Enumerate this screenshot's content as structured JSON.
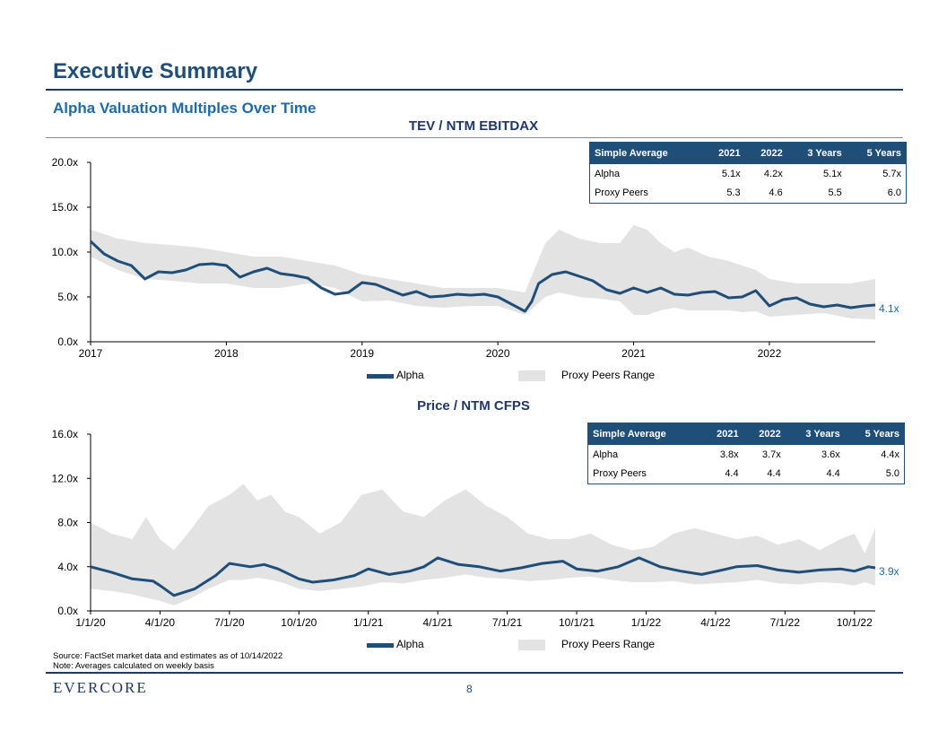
{
  "header": {
    "title": "Executive Summary",
    "subtitle": "Alpha Valuation Multiples Over Time"
  },
  "colors": {
    "navy": "#1f4e79",
    "range_fill": "#e3e3e3",
    "accent_blue": "#1f6ba5"
  },
  "chart_data": [
    {
      "type": "line",
      "title": "TEV / NTM EBITDAX",
      "x_ticks": [
        "2017",
        "2018",
        "2019",
        "2020",
        "2021",
        "2022"
      ],
      "x_range": [
        2017.0,
        2022.78
      ],
      "y_ticks": [
        "0.0x",
        "5.0x",
        "10.0x",
        "15.0x",
        "20.0x"
      ],
      "ylim": [
        0,
        20
      ],
      "end_label": "4.1x",
      "series": [
        {
          "name": "Alpha",
          "x": [
            2017.0,
            2017.1,
            2017.2,
            2017.3,
            2017.4,
            2017.5,
            2017.6,
            2017.7,
            2017.8,
            2017.9,
            2018.0,
            2018.1,
            2018.2,
            2018.3,
            2018.4,
            2018.5,
            2018.6,
            2018.7,
            2018.8,
            2018.9,
            2019.0,
            2019.1,
            2019.2,
            2019.3,
            2019.4,
            2019.5,
            2019.6,
            2019.7,
            2019.8,
            2019.9,
            2020.0,
            2020.1,
            2020.2,
            2020.25,
            2020.3,
            2020.4,
            2020.5,
            2020.6,
            2020.7,
            2020.8,
            2020.9,
            2021.0,
            2021.1,
            2021.2,
            2021.3,
            2021.4,
            2021.5,
            2021.6,
            2021.7,
            2021.8,
            2021.9,
            2022.0,
            2022.1,
            2022.2,
            2022.3,
            2022.4,
            2022.5,
            2022.6,
            2022.7,
            2022.78
          ],
          "values": [
            11.2,
            9.8,
            9.0,
            8.5,
            7.0,
            7.8,
            7.7,
            8.0,
            8.6,
            8.7,
            8.5,
            7.2,
            7.8,
            8.2,
            7.6,
            7.4,
            7.1,
            6.0,
            5.3,
            5.5,
            6.6,
            6.4,
            5.8,
            5.2,
            5.6,
            5.0,
            5.1,
            5.3,
            5.2,
            5.3,
            5.0,
            4.2,
            3.4,
            4.5,
            6.5,
            7.5,
            7.8,
            7.3,
            6.8,
            5.8,
            5.4,
            6.0,
            5.5,
            6.0,
            5.3,
            5.2,
            5.5,
            5.6,
            4.9,
            5.0,
            5.7,
            4.0,
            4.7,
            4.9,
            4.2,
            3.9,
            4.1,
            3.8,
            4.0,
            4.1
          ]
        },
        {
          "name": "Proxy Peers Range",
          "x": [
            2017.0,
            2017.2,
            2017.4,
            2017.6,
            2017.8,
            2018.0,
            2018.2,
            2018.4,
            2018.6,
            2018.8,
            2019.0,
            2019.2,
            2019.4,
            2019.6,
            2019.8,
            2020.0,
            2020.2,
            2020.35,
            2020.45,
            2020.6,
            2020.75,
            2020.9,
            2021.0,
            2021.1,
            2021.2,
            2021.3,
            2021.4,
            2021.55,
            2021.7,
            2021.8,
            2021.9,
            2022.0,
            2022.2,
            2022.4,
            2022.6,
            2022.78
          ],
          "low": [
            9.5,
            8.0,
            7.0,
            6.8,
            6.5,
            6.5,
            6.0,
            6.0,
            6.5,
            6.0,
            4.5,
            4.6,
            4.0,
            3.8,
            4.0,
            4.0,
            3.0,
            5.0,
            5.5,
            5.0,
            4.8,
            4.5,
            3.0,
            3.0,
            3.5,
            3.8,
            3.5,
            3.5,
            3.5,
            3.3,
            3.4,
            2.8,
            3.0,
            3.2,
            2.6,
            2.5
          ],
          "high": [
            12.5,
            11.5,
            11.0,
            10.8,
            10.5,
            10.0,
            9.5,
            9.5,
            9.0,
            8.5,
            7.5,
            7.0,
            6.5,
            6.0,
            6.0,
            6.0,
            5.5,
            11.0,
            12.5,
            11.5,
            11.0,
            11.0,
            13.0,
            12.5,
            11.0,
            10.0,
            10.5,
            9.5,
            9.0,
            8.5,
            8.0,
            7.0,
            6.5,
            6.5,
            6.5,
            7.0
          ]
        }
      ],
      "table": {
        "headers": [
          "Simple Average",
          "2021",
          "2022",
          "3 Years",
          "5 Years"
        ],
        "rows": [
          [
            "Alpha",
            "5.1x",
            "4.2x",
            "5.1x",
            "5.7x"
          ],
          [
            "Proxy Peers",
            "5.3",
            "4.6",
            "5.5",
            "6.0"
          ]
        ]
      },
      "legend": [
        "Alpha",
        "Proxy Peers Range"
      ]
    },
    {
      "type": "line",
      "title": "Price / NTM CFPS",
      "x_ticks": [
        "1/1/20",
        "4/1/20",
        "7/1/20",
        "10/1/20",
        "1/1/21",
        "4/1/21",
        "7/1/21",
        "10/1/21",
        "1/1/22",
        "4/1/22",
        "7/1/22",
        "10/1/22"
      ],
      "x_range": [
        0,
        11.3
      ],
      "y_ticks": [
        "0.0x",
        "4.0x",
        "8.0x",
        "12.0x",
        "16.0x"
      ],
      "ylim": [
        0,
        16
      ],
      "end_label": "3.9x",
      "series": [
        {
          "name": "Alpha",
          "x": [
            0,
            0.3,
            0.6,
            0.9,
            1.0,
            1.2,
            1.5,
            1.8,
            2.0,
            2.1,
            2.3,
            2.5,
            2.7,
            3.0,
            3.2,
            3.5,
            3.8,
            4.0,
            4.3,
            4.6,
            4.8,
            5.0,
            5.3,
            5.6,
            5.9,
            6.2,
            6.5,
            6.8,
            7.0,
            7.3,
            7.6,
            7.9,
            8.2,
            8.5,
            8.8,
            9.1,
            9.3,
            9.6,
            9.9,
            10.2,
            10.5,
            10.8,
            11.0,
            11.2,
            11.3
          ],
          "values": [
            4.0,
            3.5,
            2.9,
            2.7,
            2.3,
            1.4,
            2.0,
            3.2,
            4.3,
            4.2,
            4.0,
            4.2,
            3.8,
            2.9,
            2.6,
            2.8,
            3.2,
            3.8,
            3.3,
            3.6,
            4.0,
            4.8,
            4.2,
            4.0,
            3.6,
            3.9,
            4.3,
            4.5,
            3.8,
            3.6,
            4.0,
            4.8,
            4.0,
            3.6,
            3.3,
            3.7,
            4.0,
            4.1,
            3.7,
            3.5,
            3.7,
            3.8,
            3.6,
            4.0,
            3.9
          ]
        },
        {
          "name": "Proxy Peers Range",
          "x": [
            0,
            0.3,
            0.6,
            0.8,
            1.0,
            1.2,
            1.4,
            1.7,
            2.0,
            2.2,
            2.4,
            2.6,
            2.8,
            3.0,
            3.3,
            3.6,
            3.9,
            4.2,
            4.5,
            4.8,
            5.1,
            5.4,
            5.7,
            6.0,
            6.3,
            6.6,
            6.9,
            7.2,
            7.5,
            7.8,
            8.1,
            8.4,
            8.7,
            9.0,
            9.3,
            9.6,
            9.9,
            10.2,
            10.5,
            10.8,
            11.0,
            11.15,
            11.3
          ],
          "low": [
            2.0,
            1.8,
            1.5,
            1.2,
            0.9,
            0.5,
            1.0,
            2.0,
            2.8,
            2.8,
            3.0,
            2.8,
            2.5,
            2.0,
            1.8,
            2.0,
            2.2,
            2.6,
            2.5,
            2.8,
            3.0,
            3.3,
            3.0,
            2.9,
            2.7,
            2.8,
            3.0,
            3.1,
            2.8,
            2.6,
            2.6,
            2.7,
            2.4,
            2.5,
            2.6,
            2.8,
            2.5,
            2.4,
            2.6,
            2.5,
            2.3,
            2.6,
            2.3
          ],
          "high": [
            8.0,
            7.0,
            6.5,
            8.5,
            6.5,
            5.5,
            7.0,
            9.5,
            10.5,
            11.5,
            10.0,
            10.5,
            9.0,
            8.5,
            7.0,
            8.0,
            10.5,
            11.0,
            9.0,
            8.5,
            10.0,
            11.0,
            9.5,
            8.5,
            7.0,
            6.5,
            6.5,
            7.0,
            6.0,
            5.5,
            5.8,
            7.0,
            7.5,
            7.0,
            6.5,
            6.8,
            6.0,
            6.5,
            5.5,
            6.5,
            7.0,
            5.2,
            7.5
          ]
        }
      ],
      "table": {
        "headers": [
          "Simple Average",
          "2021",
          "2022",
          "3 Years",
          "5 Years"
        ],
        "rows": [
          [
            "Alpha",
            "3.8x",
            "3.7x",
            "3.6x",
            "4.4x"
          ],
          [
            "Proxy Peers",
            "4.4",
            "4.4",
            "4.4",
            "5.0"
          ]
        ]
      },
      "legend": [
        "Alpha",
        "Proxy Peers Range"
      ]
    }
  ],
  "footer": {
    "source": "Source: FactSet market data and estimates as of 10/14/2022",
    "note": "Note: Averages calculated on weekly basis",
    "logo": "Evercore",
    "page": "8"
  }
}
